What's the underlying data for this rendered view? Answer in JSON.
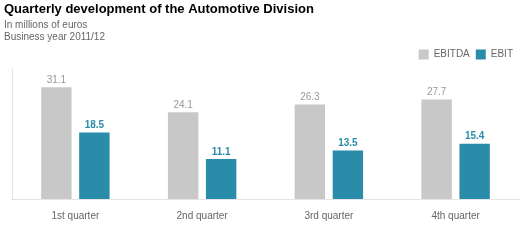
{
  "chart_data": {
    "type": "bar",
    "title": "Quarterly development of the Automotive Division",
    "subtitle": [
      "In millions of euros",
      "Business year 2011/12"
    ],
    "categories": [
      "1st quarter",
      "2nd quarter",
      "3rd quarter",
      "4th quarter"
    ],
    "series": [
      {
        "name": "EBITDA",
        "color": "#c8c8c8",
        "values": [
          31.1,
          24.1,
          26.3,
          27.7
        ]
      },
      {
        "name": "EBIT",
        "color": "#2b8caa",
        "values": [
          18.5,
          11.1,
          13.5,
          15.4
        ]
      }
    ],
    "ylim": [
      0,
      36
    ],
    "grid": false,
    "legend": "upper right",
    "data_labels": true,
    "tick_labels": "x"
  }
}
